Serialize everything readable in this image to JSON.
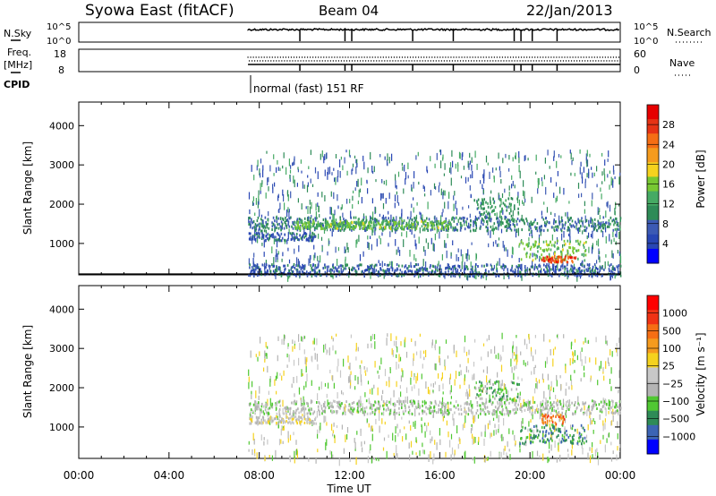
{
  "header": {
    "station": "Syowa East (fitACF)",
    "beam": "Beam 04",
    "date": "22/Jan/2013"
  },
  "nsky_panel": {
    "label": "N.Sky",
    "ticks_left": [
      "10^5",
      "10^0"
    ],
    "ticks_right": [
      "10^5",
      "10^0"
    ],
    "right_label": "N.Search"
  },
  "freq_panel": {
    "label_line1": "Freq.",
    "label_line2": "[MHz]",
    "ticks_left": [
      "18",
      "8"
    ],
    "ticks_right": [
      "60",
      "0"
    ],
    "right_label": "Nave"
  },
  "cpid": {
    "label": "CPID",
    "mode_text": "normal (fast) 151 RF"
  },
  "colors": {
    "power_scale": [
      "#0000ff",
      "#2846b4",
      "#3c5ab4",
      "#2e8b57",
      "#46aa64",
      "#78c832",
      "#f5d21e",
      "#f59b1e",
      "#f56e14",
      "#e63214",
      "#e60000"
    ],
    "velocity_scale": [
      "#0000ff",
      "#3c64b4",
      "#2e8b57",
      "#50c832",
      "#b4b4b4",
      "#c8c8c8",
      "#f5d21e",
      "#f59b1e",
      "#f56e14",
      "#f03214",
      "#ff0000"
    ]
  },
  "chart_data": [
    {
      "type": "heatmap",
      "name": "power",
      "ylabel": "Slant Range [km]",
      "yticks": [
        1000,
        2000,
        3000,
        4000
      ],
      "ylim": [
        200,
        4600
      ],
      "xlim_hours": [
        0,
        24
      ],
      "colorbar_label": "Power [dB]",
      "colorbar_ticks": [
        4,
        8,
        12,
        16,
        20,
        24,
        28
      ],
      "colorbar_range": [
        0,
        32
      ],
      "data_start_hour": 7.5,
      "bands": [
        {
          "t0": 7.5,
          "t1": 24,
          "r0": 1350,
          "r1": 1700,
          "level": 8
        },
        {
          "t0": 7.5,
          "t1": 10.5,
          "r0": 1100,
          "r1": 1300,
          "level": 6
        },
        {
          "t0": 9.5,
          "t1": 16.5,
          "r0": 1400,
          "r1": 1600,
          "level": 14
        },
        {
          "t0": 17.5,
          "t1": 19.5,
          "r0": 1700,
          "r1": 2200,
          "level": 10
        },
        {
          "t0": 19.5,
          "t1": 22.5,
          "r0": 600,
          "r1": 1100,
          "level": 14
        },
        {
          "t0": 20.5,
          "t1": 22.0,
          "r0": 550,
          "r1": 700,
          "level": 26
        },
        {
          "t0": 7.5,
          "t1": 24,
          "r0": 200,
          "r1": 500,
          "level": 6
        }
      ]
    },
    {
      "type": "heatmap",
      "name": "velocity",
      "ylabel": "Slant Range [km]",
      "yticks": [
        1000,
        2000,
        3000,
        4000
      ],
      "ylim": [
        200,
        4600
      ],
      "xlim_hours": [
        0,
        24
      ],
      "xlabel": "Time UT",
      "xtick_labels": [
        "00:00",
        "04:00",
        "08:00",
        "12:00",
        "16:00",
        "20:00",
        "00:00"
      ],
      "xtick_hours": [
        0,
        4,
        8,
        12,
        16,
        20,
        24
      ],
      "colorbar_label": "Velocity [m s⁻¹]",
      "colorbar_ticks": [
        "1000",
        "500",
        "100",
        "25",
        "−25",
        "−100",
        "−500",
        "−1000"
      ],
      "data_start_hour": 7.5,
      "bands": [
        {
          "t0": 7.5,
          "t1": 24,
          "r0": 1350,
          "r1": 1700,
          "level": 4
        },
        {
          "t0": 7.5,
          "t1": 10.5,
          "r0": 1100,
          "r1": 1300,
          "level": 5
        },
        {
          "t0": 17.5,
          "t1": 19.5,
          "r0": 1700,
          "r1": 2200,
          "level": 3
        },
        {
          "t0": 19.5,
          "t1": 22.5,
          "r0": 600,
          "r1": 1100,
          "level": 2
        },
        {
          "t0": 20.5,
          "t1": 21.5,
          "r0": 1100,
          "r1": 1350,
          "level": 8
        }
      ]
    }
  ]
}
